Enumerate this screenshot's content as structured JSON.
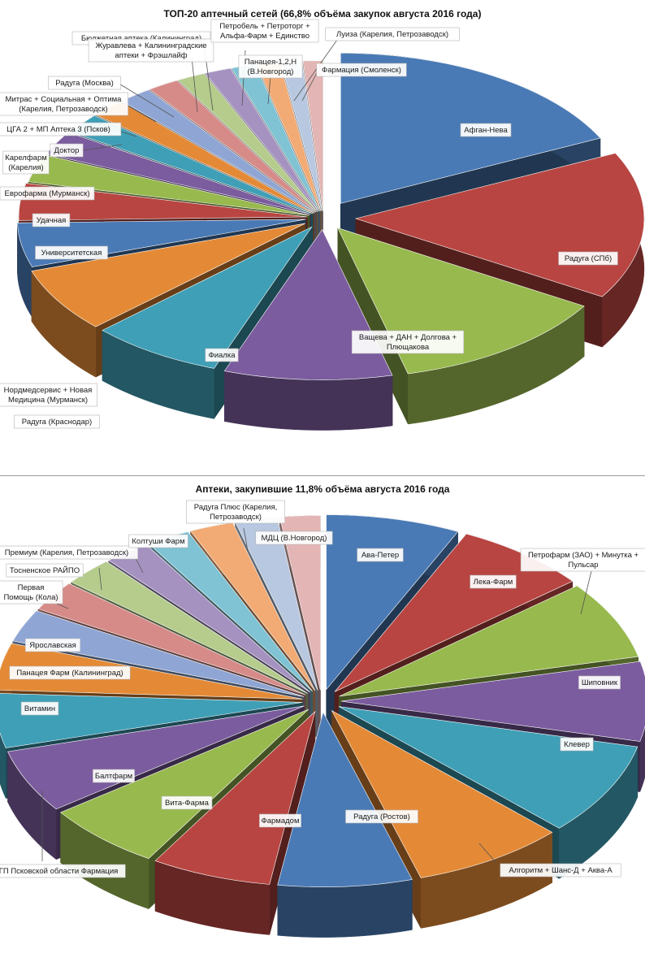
{
  "charts": [
    {
      "title": "ТОП-20 аптечный сетей (66,8% объёма закупок августа 2016 года)"
    },
    {
      "title": "Аптеки, закупившие 11,8% объёма августа 2016 года"
    }
  ],
  "chart_data": [
    {
      "type": "pie",
      "title": "ТОП-20 аптечный сетей (66,8% объёма закупок августа 2016 года)",
      "legend": "none",
      "style": "3d-exploded",
      "categories": [
        "Афган-Нева",
        "Радуга (СПб)",
        "Ващева + ДАН + Долгова + Плющакова",
        "Фиалка",
        "Радуга (Краснодар)",
        "Нордмедсервис + Новая Медицина (Мурманск)",
        "Университетская",
        "Удачная",
        "Еврофарма (Мурманск)",
        "Карелфарм (Карелия)",
        "Доктор",
        "ЦГА 2 + МП Аптека 3 (Псков)",
        "Митрас + Социальная + Оптима (Карелия, Петрозаводск)",
        "Радуга (Москва)",
        "Бюджетная аптека (Калининград)",
        "Журавлева + Калининградские аптеки + Фрэшлайф",
        "Петробель + Петроторг + Альфа-Фарм + Единство",
        "Панацея-1,2,Н (В.Новгород)",
        "Луиза (Карелия, Петрозаводск)",
        "Фармация (Смоленск)"
      ],
      "values": [
        18.0,
        16.0,
        12.5,
        9.5,
        7.5,
        7.0,
        4.8,
        4.0,
        3.0,
        2.6,
        2.2,
        2.0,
        1.9,
        1.8,
        1.6,
        1.5,
        1.4,
        1.3,
        1.2,
        1.1
      ],
      "colors": [
        "#4a7ab5",
        "#b84541",
        "#98b94e",
        "#7b5c9e",
        "#3f9fb6",
        "#e48a36",
        "#4a7ab5",
        "#b84541",
        "#98b94e",
        "#7b5c9e",
        "#3f9fb6",
        "#e48a36",
        "#8fa6d4",
        "#d68b88",
        "#b5cc8c",
        "#a592c0",
        "#7fc3d4",
        "#f2ab74",
        "#b8c8e0",
        "#e3b5b4"
      ]
    },
    {
      "type": "pie",
      "title": "Аптеки, закупившие 11,8% объёма августа 2016 года",
      "legend": "none",
      "style": "3d-exploded",
      "categories": [
        "Ава-Петер",
        "Лека-Фарм",
        "Петрофарм (ЗАО) + Минутка + Пульсар",
        "Шиповник",
        "Клевер",
        "Алгоритм + Шанс-Д + Аква-А",
        "Радуга (Ростов)",
        "Фармадом",
        "Вита-Фарма",
        "Балтфарм",
        "ГП Псковской области Фармация",
        "Витамин",
        "Панацея Фарм (Калининград)",
        "Ярославская",
        "Первая Помощь (Кола)",
        "Тосненское РАЙПО",
        "Премиум (Карелия, Петрозаводск)",
        "Колтуши Фарм",
        "Радуга Плюс (Карелия, Петрозаводск)",
        "МДЦ (В.Новгород)"
      ],
      "values": [
        7.0,
        7.0,
        7.2,
        7.3,
        8.5,
        8.0,
        7.0,
        6.3,
        6.2,
        5.8,
        5.0,
        4.3,
        3.0,
        2.8,
        2.6,
        2.4,
        2.3,
        2.3,
        2.2,
        2.1
      ],
      "colors": [
        "#4a7ab5",
        "#b84541",
        "#98b94e",
        "#7b5c9e",
        "#3f9fb6",
        "#e48a36",
        "#4a7ab5",
        "#b84541",
        "#98b94e",
        "#7b5c9e",
        "#3f9fb6",
        "#e48a36",
        "#8fa6d4",
        "#d68b88",
        "#b5cc8c",
        "#a592c0",
        "#7fc3d4",
        "#f2ab74",
        "#b8c8e0",
        "#e3b5b4"
      ]
    }
  ]
}
